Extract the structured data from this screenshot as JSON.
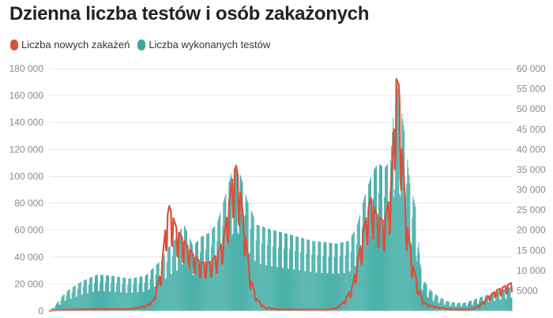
{
  "title": "Dzienna liczba testów i osób zakażonych",
  "legend": [
    {
      "label": "Liczba nowych zakażeń",
      "color": "#d9513c"
    },
    {
      "label": "Liczba wykonanych testów",
      "color": "#3aa9a3"
    }
  ],
  "chart_data": {
    "type": "bar",
    "title": "Dzienna liczba testów i osób zakażonych",
    "xlabel": "",
    "y_left": {
      "ticks": [
        0,
        20000,
        40000,
        60000,
        80000,
        100000,
        120000,
        140000,
        160000,
        180000
      ],
      "tick_labels": [
        "0",
        "20 000",
        "40 000",
        "60 000",
        "80 000",
        "100 000",
        "120 000",
        "140 000",
        "160 000",
        "180 000"
      ],
      "range": [
        0,
        180000
      ]
    },
    "y_right": {
      "ticks": [
        5000,
        10000,
        15000,
        20000,
        25000,
        30000,
        35000,
        40000,
        45000,
        50000,
        55000,
        60000
      ],
      "tick_labels": [
        "5000",
        "10 000",
        "15 000",
        "20 000",
        "25 000",
        "30 000",
        "35 000",
        "40 000",
        "45 000",
        "50 000",
        "55 000",
        "60 000"
      ],
      "range": [
        0,
        60000
      ]
    },
    "grid": true,
    "legend_position": "top-left",
    "series": [
      {
        "name": "Liczba wykonanych testów",
        "type": "bar",
        "axis": "left",
        "color": "#3aa9a3",
        "points": [
          [
            0,
            0
          ],
          [
            8,
            5000
          ],
          [
            20,
            14000
          ],
          [
            40,
            22000
          ],
          [
            60,
            27000
          ],
          [
            80,
            26000
          ],
          [
            100,
            24000
          ],
          [
            120,
            26000
          ],
          [
            140,
            38000
          ],
          [
            150,
            48000
          ],
          [
            160,
            55000
          ],
          [
            168,
            65000
          ],
          [
            175,
            55000
          ],
          [
            180,
            48000
          ],
          [
            190,
            55000
          ],
          [
            200,
            58000
          ],
          [
            210,
            65000
          ],
          [
            220,
            85000
          ],
          [
            228,
            102000
          ],
          [
            234,
            108000
          ],
          [
            240,
            100000
          ],
          [
            248,
            82000
          ],
          [
            260,
            64000
          ],
          [
            280,
            60000
          ],
          [
            300,
            57000
          ],
          [
            330,
            52000
          ],
          [
            360,
            50000
          ],
          [
            375,
            52000
          ],
          [
            385,
            62000
          ],
          [
            395,
            85000
          ],
          [
            405,
            103000
          ],
          [
            412,
            110000
          ],
          [
            420,
            106000
          ],
          [
            428,
            112000
          ],
          [
            434,
            175000
          ],
          [
            440,
            155000
          ],
          [
            446,
            130000
          ],
          [
            452,
            95000
          ],
          [
            460,
            75000
          ],
          [
            465,
            35000
          ],
          [
            470,
            22000
          ],
          [
            480,
            14000
          ],
          [
            490,
            10000
          ],
          [
            500,
            7000
          ],
          [
            510,
            6000
          ],
          [
            520,
            6000
          ],
          [
            530,
            8000
          ],
          [
            540,
            10000
          ],
          [
            550,
            12000
          ],
          [
            560,
            14000
          ],
          [
            570,
            16000
          ],
          [
            580,
            18000
          ]
        ]
      },
      {
        "name": "Liczba nowych zakażeń",
        "type": "line",
        "axis": "right",
        "color": "#d9513c",
        "points": [
          [
            0,
            0
          ],
          [
            20,
            300
          ],
          [
            60,
            500
          ],
          [
            100,
            500
          ],
          [
            110,
            800
          ],
          [
            120,
            1200
          ],
          [
            130,
            2500
          ],
          [
            140,
            10000
          ],
          [
            146,
            22000
          ],
          [
            150,
            26000
          ],
          [
            155,
            23000
          ],
          [
            160,
            20000
          ],
          [
            170,
            17000
          ],
          [
            180,
            14000
          ],
          [
            190,
            12000
          ],
          [
            200,
            12000
          ],
          [
            210,
            14000
          ],
          [
            218,
            18000
          ],
          [
            225,
            27000
          ],
          [
            230,
            34000
          ],
          [
            234,
            36000
          ],
          [
            238,
            31000
          ],
          [
            245,
            20000
          ],
          [
            252,
            8000
          ],
          [
            260,
            3000
          ],
          [
            270,
            800
          ],
          [
            290,
            400
          ],
          [
            320,
            300
          ],
          [
            345,
            300
          ],
          [
            360,
            700
          ],
          [
            370,
            2500
          ],
          [
            380,
            6000
          ],
          [
            390,
            16000
          ],
          [
            398,
            24000
          ],
          [
            403,
            28000
          ],
          [
            410,
            24000
          ],
          [
            420,
            22000
          ],
          [
            428,
            30000
          ],
          [
            432,
            45000
          ],
          [
            434,
            58000
          ],
          [
            438,
            56000
          ],
          [
            442,
            40000
          ],
          [
            448,
            22000
          ],
          [
            455,
            12000
          ],
          [
            463,
            5000
          ],
          [
            470,
            2000
          ],
          [
            480,
            1200
          ],
          [
            500,
            500
          ],
          [
            520,
            300
          ],
          [
            530,
            400
          ],
          [
            540,
            1500
          ],
          [
            550,
            3500
          ],
          [
            560,
            5000
          ],
          [
            570,
            6000
          ],
          [
            580,
            7000
          ]
        ]
      }
    ]
  }
}
